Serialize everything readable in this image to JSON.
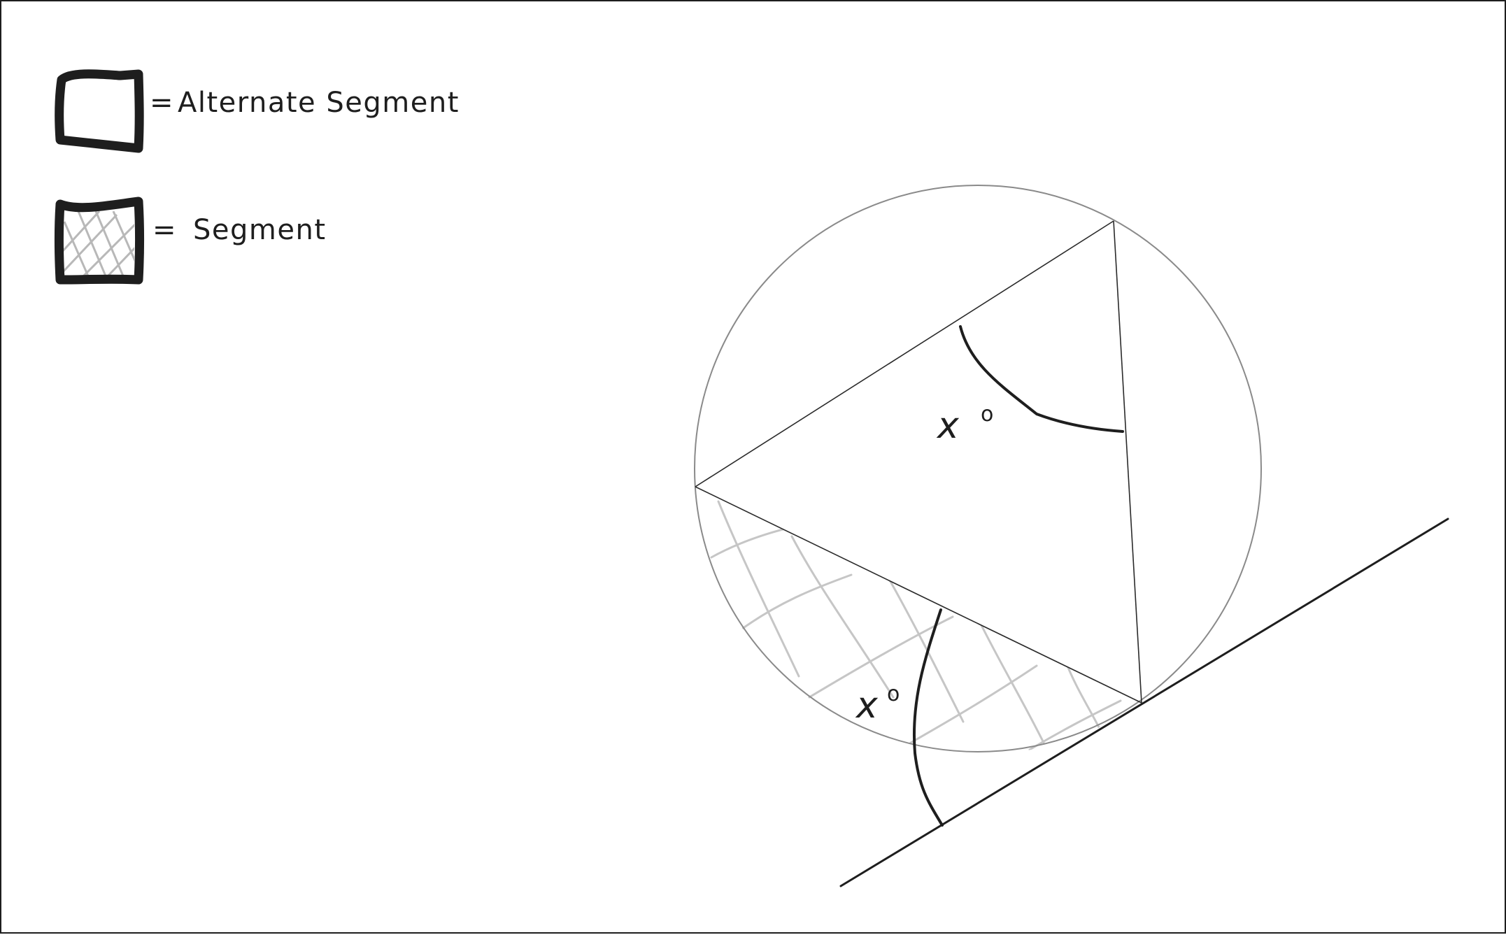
{
  "legend": {
    "alternate_segment": {
      "label": "Alternate Segment",
      "symbol": "empty-box",
      "equals": "="
    },
    "segment": {
      "label": "Segment",
      "symbol": "hatched-box",
      "equals": "="
    }
  },
  "angles": {
    "inscribed_angle": {
      "label": "x",
      "degree_mark": "o"
    },
    "tangent_chord_angle": {
      "label": "x",
      "degree_mark": "o"
    }
  },
  "colors": {
    "ink": "#1e1e1e",
    "circle_stroke": "#8a8a8a",
    "hatch": "#c6c6c6",
    "background": "#ffffff"
  }
}
